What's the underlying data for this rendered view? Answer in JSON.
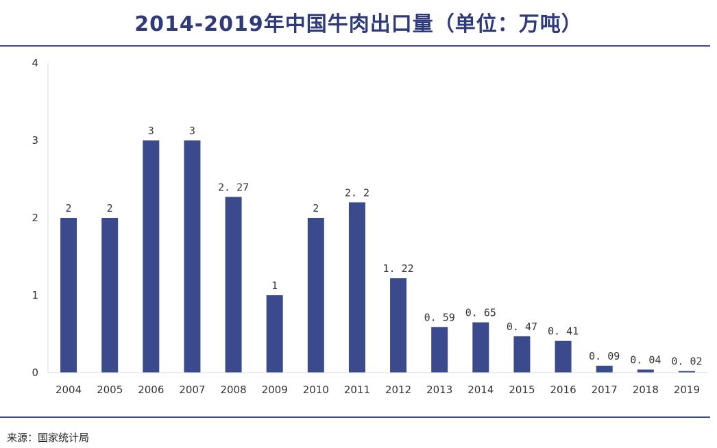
{
  "title": "2014-2019年中国牛肉出口量（单位：万吨）",
  "source": "来源：国家统计局",
  "colors": {
    "bar": "#3b4a8c",
    "title": "#2e3a7a",
    "rule": "#3b4a86"
  },
  "chart_data": {
    "type": "bar",
    "title": "2014-2019年中国牛肉出口量（单位：万吨）",
    "xlabel": "",
    "ylabel": "",
    "ylim": [
      0,
      4
    ],
    "yticks": [
      "0",
      "1",
      "2",
      "3",
      "4"
    ],
    "grid": false,
    "categories": [
      "2004",
      "2005",
      "2006",
      "2007",
      "2008",
      "2009",
      "2010",
      "2011",
      "2012",
      "2013",
      "2014",
      "2015",
      "2016",
      "2017",
      "2018",
      "2019"
    ],
    "values": [
      2,
      2,
      3,
      3,
      2.27,
      1,
      2,
      2.2,
      1.22,
      0.59,
      0.65,
      0.47,
      0.41,
      0.09,
      0.04,
      0.02
    ],
    "data_labels": [
      "2",
      "2",
      "3",
      "3",
      "2. 27",
      "1",
      "2",
      "2. 2",
      "1. 22",
      "0. 59",
      "0. 65",
      "0. 47",
      "0. 41",
      "0. 09",
      "0. 04",
      "0. 02"
    ]
  }
}
